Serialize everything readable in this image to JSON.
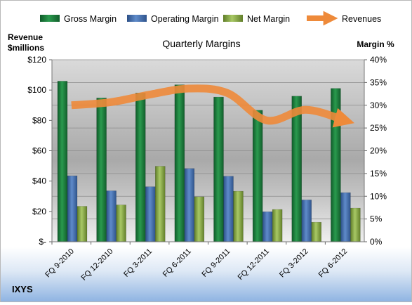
{
  "chart_data": {
    "type": "bar",
    "title": "Quarterly Margins",
    "company": "IXYS",
    "left_axis_title": [
      "Revenue",
      "$millions"
    ],
    "right_axis_title": "Margin %",
    "left_ticks": [
      "$-",
      "$20",
      "$40",
      "$60",
      "$80",
      "$100",
      "$120"
    ],
    "right_ticks": [
      "0%",
      "5%",
      "10%",
      "15%",
      "20%",
      "25%",
      "30%",
      "35%",
      "40%"
    ],
    "ylim_left": [
      0,
      120
    ],
    "ylim_right": [
      0,
      40
    ],
    "categories": [
      "FQ 9-2010",
      "FQ 12-2010",
      "FQ 3-2011",
      "FQ 6-2011",
      "FQ 9-2011",
      "FQ 12-2011",
      "FQ 3-2012",
      "FQ 6-2012"
    ],
    "series": [
      {
        "name": "Gross Margin",
        "axis": "right",
        "color": "#1e7a3c",
        "values": [
          35.3,
          31.6,
          32.7,
          34.5,
          31.8,
          28.9,
          32.0,
          33.7
        ]
      },
      {
        "name": "Operating Margin",
        "axis": "right",
        "color": "#4a72b0",
        "values": [
          14.5,
          11.2,
          12.1,
          16.1,
          14.4,
          6.6,
          9.2,
          10.8
        ]
      },
      {
        "name": "Net Margin",
        "axis": "right",
        "color": "#8fae4c",
        "values": [
          7.8,
          8.1,
          16.6,
          9.9,
          11.1,
          7.1,
          4.3,
          7.4
        ]
      },
      {
        "name": "Revenues",
        "axis": "left",
        "color": "#ee8a3a",
        "type": "line",
        "values": [
          90,
          92,
          97,
          101,
          98,
          80,
          87,
          80
        ]
      }
    ],
    "legend_position": "top",
    "grid": true
  }
}
